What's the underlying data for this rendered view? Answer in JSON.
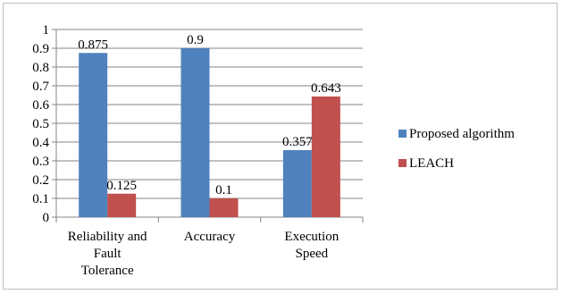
{
  "chart_data": {
    "type": "bar",
    "title": "",
    "xlabel": "",
    "ylabel": "",
    "ylim": [
      0,
      1
    ],
    "yticks": [
      "0",
      "0.1",
      "0.2",
      "0.3",
      "0.4",
      "0.5",
      "0.6",
      "0.7",
      "0.8",
      "0.9",
      "1"
    ],
    "categories": [
      [
        "Reliability and",
        "Fault",
        "Tolerance"
      ],
      [
        "Accuracy"
      ],
      [
        "Execution",
        "Speed"
      ]
    ],
    "series": [
      {
        "name": "Proposed algorithm",
        "color": "#4f81bd",
        "values": [
          0.875,
          0.9,
          0.357
        ],
        "labels": [
          "0.875",
          "0.9",
          "0.357"
        ]
      },
      {
        "name": "LEACH",
        "color": "#c0504d",
        "values": [
          0.125,
          0.1,
          0.643
        ],
        "labels": [
          "0.125",
          "0.1",
          "0.643"
        ]
      }
    ],
    "grid": true,
    "legend_position": "right"
  }
}
